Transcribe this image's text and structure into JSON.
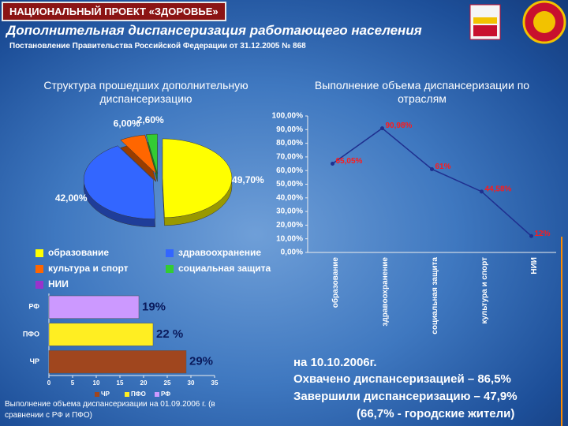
{
  "header": {
    "tag": "НАЦИОНАЛЬНЫЙ ПРОЕКТ «ЗДОРОВЬЕ»",
    "title": "Дополнительная диспансеризация работающего населения",
    "subtitle": "Постановление Правительства Российской Федерации от 31.12.2005 № 868"
  },
  "notes": [
    "на 10.10.2006г.",
    "Охвачено диспансеризацией – 86,5%",
    "Завершили диспансеризацию – 47,9%",
    "(66,7% - городские  жители)"
  ],
  "chart_data": [
    {
      "type": "pie",
      "title": "Структура прошедших дополнительную диспансеризацию",
      "categories": [
        "образование",
        "здравоохранение",
        "культура и спорт",
        "социальная защита",
        "НИИ"
      ],
      "values": [
        49.7,
        42.0,
        6.0,
        2.6,
        null
      ],
      "value_labels": [
        "49,70%",
        "42,00%",
        "6,00%",
        "2,60%",
        null
      ],
      "colors": [
        "#ffff00",
        "#3366ff",
        "#ff6600",
        "#33cc33",
        "#9933cc"
      ]
    },
    {
      "type": "line",
      "title": "Выполнение объема  диспансеризации по отраслям",
      "categories": [
        "образование",
        "здравоохранение",
        "социальная защита",
        "культура и спорт",
        "НИИ"
      ],
      "values": [
        65.05,
        90.98,
        61,
        44.58,
        12
      ],
      "value_labels": [
        "65,05%",
        "90,98%",
        "61%",
        "44,58%",
        "12%"
      ],
      "color": "#1f2f8f",
      "label_color": "#ff1a1a",
      "ylim": [
        0,
        100
      ],
      "yticks": [
        {
          "value": 0,
          "label": "0,00%"
        },
        {
          "value": 10,
          "label": "10,00%"
        },
        {
          "value": 20,
          "label": "20,00%"
        },
        {
          "value": 30,
          "label": "30,00%"
        },
        {
          "value": 40,
          "label": "40,00%"
        },
        {
          "value": 50,
          "label": "50,00%"
        },
        {
          "value": 60,
          "label": "60,00%"
        },
        {
          "value": 70,
          "label": "70,00%"
        },
        {
          "value": 80,
          "label": "80,00%"
        },
        {
          "value": 90,
          "label": "90,00%"
        },
        {
          "value": 100,
          "label": "100,00%"
        }
      ]
    },
    {
      "type": "hbar",
      "title": "Выполнение объема диспансеризации на 01.09.2006 г. (в сравнении с РФ и ПФО)",
      "categories": [
        "РФ",
        "ПФО",
        "ЧР"
      ],
      "series": [
        {
          "name": "ЧР",
          "color": "#a0461e",
          "values": [
            null,
            null,
            29
          ],
          "value_labels": [
            null,
            null,
            "29%"
          ]
        },
        {
          "name": "ПФО",
          "color": "#ffee22",
          "values": [
            null,
            22,
            null
          ],
          "value_labels": [
            null,
            "22 %",
            null
          ]
        },
        {
          "name": "РФ",
          "color": "#cc99ff",
          "values": [
            19,
            null,
            null
          ],
          "value_labels": [
            "19%",
            null,
            null
          ]
        }
      ],
      "xlim": [
        0,
        35
      ],
      "xticks": [
        0,
        5,
        10,
        15,
        20,
        25,
        30,
        35
      ]
    }
  ]
}
